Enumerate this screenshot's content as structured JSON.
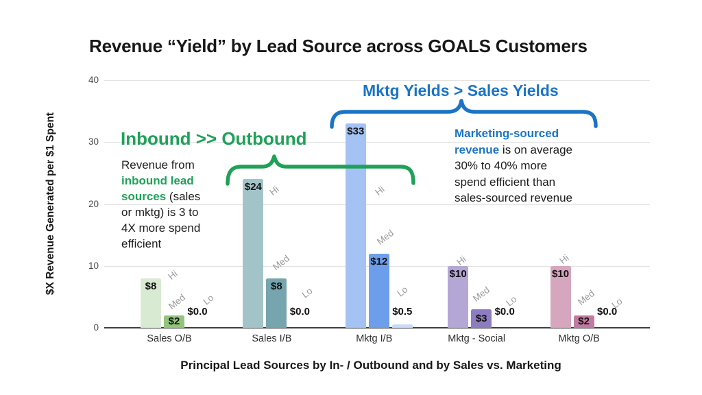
{
  "title": "Revenue “Yield” by Lead Source across GOALS Customers",
  "palette": {
    "green_accent": "#1fa158",
    "blue_accent": "#1b74c5",
    "series_label_gray": "#9a9a9a"
  },
  "chart_data": {
    "type": "bar",
    "title": "Revenue “Yield” by Lead Source across GOALS Customers",
    "xlabel": "Principal Lead Sources by In- / Outbound and by Sales vs. Marketing",
    "ylabel": "$X Revenue Generated per $1 Spent",
    "ylim": [
      0,
      40
    ],
    "yticks": [
      0,
      10,
      20,
      30,
      40
    ],
    "grid": true,
    "legend_position": "none (each bar tagged with rotated Hi / Med / Lo label)",
    "categories": [
      "Sales O/B",
      "Sales I/B",
      "Mktg I/B",
      "Mktg - Social",
      "Mktg O/B"
    ],
    "series": [
      {
        "name": "Hi",
        "values": [
          8,
          24,
          33,
          10,
          10
        ],
        "labels": [
          "$8",
          "$24",
          "$33",
          "$10",
          "$10"
        ],
        "colors": [
          "#d9ead3",
          "#a2c4c9",
          "#a4c2f4",
          "#b4a7d6",
          "#d5a6bd"
        ]
      },
      {
        "name": "Med",
        "values": [
          2,
          8,
          12,
          3,
          2
        ],
        "labels": [
          "$2",
          "$8",
          "$12",
          "$3",
          "$2"
        ],
        "colors": [
          "#93c47d",
          "#76a5af",
          "#6d9eeb",
          "#8e7cc3",
          "#c27ba0"
        ]
      },
      {
        "name": "Lo",
        "values": [
          0,
          0,
          0.5,
          0,
          0
        ],
        "labels": [
          "$0.0",
          "$0.0",
          "$0.5",
          "$0.0",
          "$0.0"
        ],
        "colors": [
          "#c9daf8",
          "#c9daf8",
          "#c9daf8",
          "#c9daf8",
          "#c9daf8"
        ]
      }
    ]
  },
  "annotations": {
    "green": {
      "headline": "Inbound >> Outbound",
      "note_lines": [
        [
          {
            "t": "Revenue from",
            "c": ""
          }
        ],
        [
          {
            "t": "inbound lead",
            "c": "g"
          }
        ],
        [
          {
            "t": "sources",
            "c": "g"
          },
          {
            "t": " (sales",
            "c": ""
          }
        ],
        [
          {
            "t": "or mktg) is 3 to",
            "c": ""
          }
        ],
        [
          {
            "t": "4X more spend",
            "c": ""
          }
        ],
        [
          {
            "t": "efficient",
            "c": ""
          }
        ]
      ]
    },
    "blue": {
      "headline": "Mktg Yields > Sales Yields",
      "note_lines": [
        [
          {
            "t": "Marketing-sourced",
            "c": "b"
          }
        ],
        [
          {
            "t": "revenue",
            "c": "b"
          },
          {
            "t": " is on average",
            "c": ""
          }
        ],
        [
          {
            "t": "30% to 40% more",
            "c": ""
          }
        ],
        [
          {
            "t": "spend efficient than",
            "c": ""
          }
        ],
        [
          {
            "t": "sales-sourced revenue",
            "c": ""
          }
        ]
      ]
    }
  }
}
